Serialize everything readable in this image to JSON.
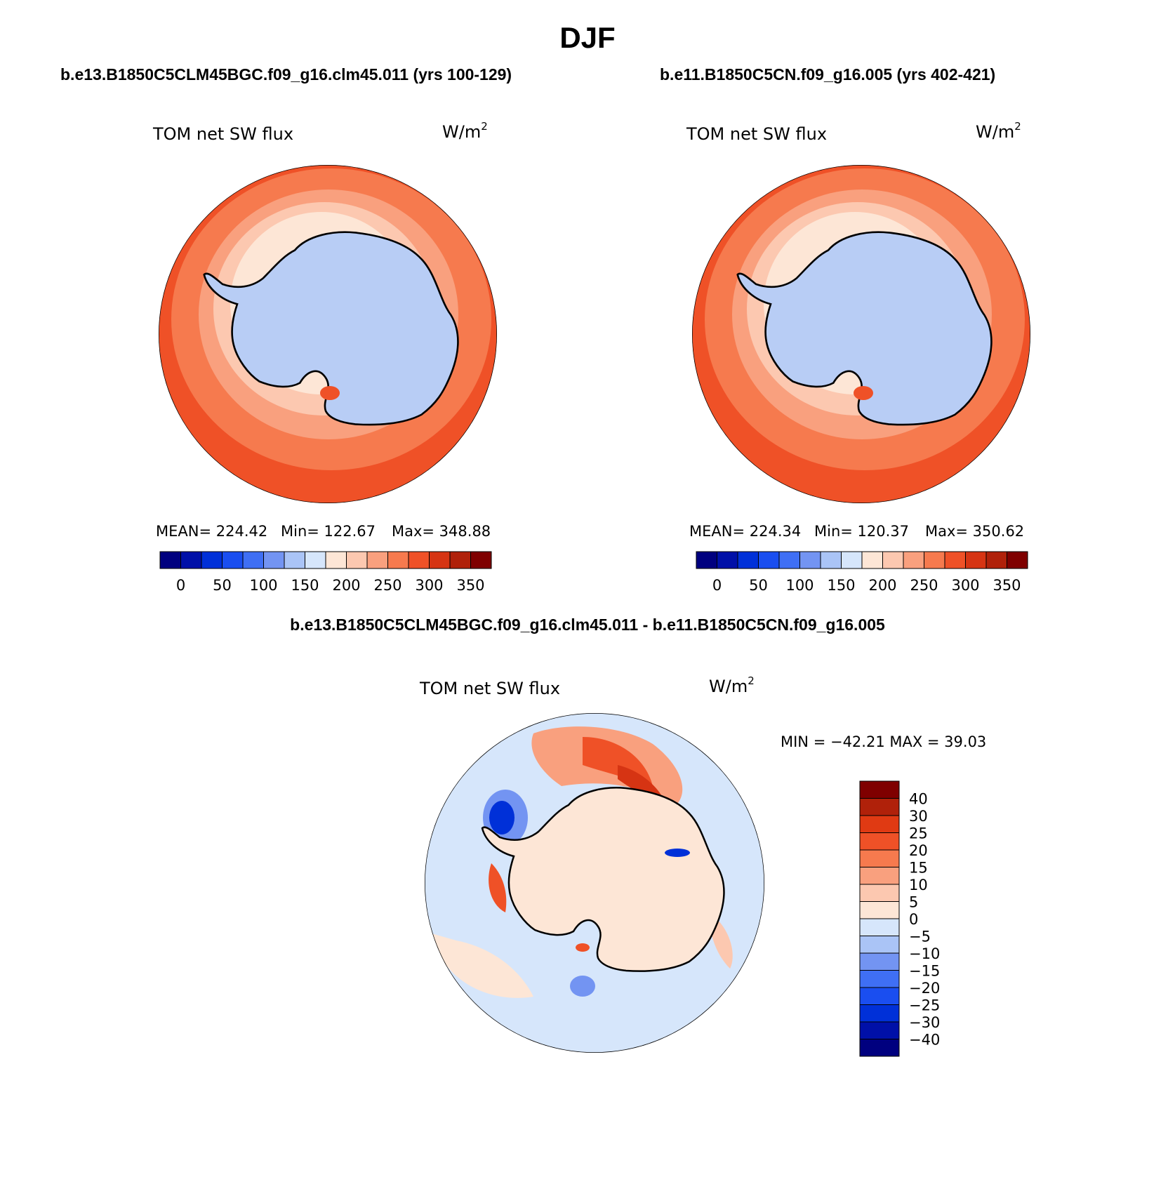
{
  "figure": {
    "title": "DJF",
    "left_title": "b.e13.B1850C5CLM45BGC.f09_g16.clm45.011 (yrs 100-129)",
    "right_title": "b.e11.B1850C5CN.f09_g16.005 (yrs 402-421)",
    "diff_title": "b.e13.B1850C5CLM45BGC.f09_g16.clm45.011 - b.e11.B1850C5CN.f09_g16.005"
  },
  "panels": {
    "left": {
      "variable": "TOM net SW flux",
      "units": "W/m",
      "units_exp": "2",
      "stats": {
        "mean": "MEAN= 224.42",
        "min": "Min= 122.67",
        "max": "Max= 348.88"
      }
    },
    "right": {
      "variable": "TOM net SW flux",
      "units": "W/m",
      "units_exp": "2",
      "stats": {
        "mean": "MEAN= 224.34",
        "min": "Min= 120.37",
        "max": "Max= 350.62"
      }
    },
    "diff": {
      "variable": "TOM net SW flux",
      "units": "W/m",
      "units_exp": "2",
      "stats": "MIN = −42.21 MAX =  39.03"
    }
  },
  "colorbars": {
    "abs": {
      "colors": [
        "#00007f",
        "#0010a8",
        "#0030d8",
        "#1a4ef0",
        "#3f6ff4",
        "#7394f2",
        "#aac4f6",
        "#d6e6fb",
        "#fde6d6",
        "#fcc8b0",
        "#f9a07e",
        "#f67a4e",
        "#ef5127",
        "#d63413",
        "#b0210a",
        "#7f0000"
      ],
      "labels": [
        "0",
        "50",
        "100",
        "150",
        "200",
        "250",
        "300",
        "350"
      ]
    },
    "diff": {
      "colors": [
        "#7f0000",
        "#b0210a",
        "#e03a13",
        "#ef5127",
        "#f67a4e",
        "#f9a07e",
        "#fcc8b0",
        "#fde6d6",
        "#d6e6fb",
        "#aac4f6",
        "#7394f2",
        "#3f6ff4",
        "#1a4ef0",
        "#0030d8",
        "#0010a8",
        "#00007f"
      ],
      "labels": [
        "40",
        "30",
        "25",
        "20",
        "15",
        "10",
        "5",
        "0",
        "−5",
        "−10",
        "−15",
        "−20",
        "−25",
        "−30",
        "−40"
      ]
    }
  },
  "map_colors": {
    "ocean_far": "#ef5127",
    "ring_mid": "#f67a4e",
    "ring_light": "#f9a07e",
    "ring_pale": "#fcc8b0",
    "ring_cream": "#fde6d6",
    "ice": "#b8cdf5",
    "diff_bg": "#d6e6fb",
    "diff_pos_light": "#fde6d6",
    "diff_pos_mid": "#f9a07e",
    "diff_pos_strong": "#ef5127",
    "diff_neg_mid": "#7394f2",
    "diff_neg_strong": "#0030d8"
  }
}
